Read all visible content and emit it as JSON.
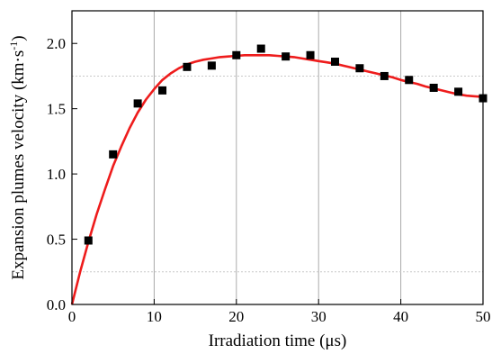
{
  "chart_data": {
    "type": "scatter",
    "xlabel": "Irradiation time (μs)",
    "ylabel": {
      "main": "Expansion plumes velocity (km·s",
      "sup": "-1",
      "close": ")"
    },
    "xlim": [
      0,
      50
    ],
    "ylim": [
      0,
      2.25
    ],
    "xticks": [
      0,
      10,
      20,
      30,
      40,
      50
    ],
    "xtick_labels": [
      "0",
      "10",
      "20",
      "30",
      "40",
      "50"
    ],
    "yticks": [
      0.0,
      0.5,
      1.0,
      1.5,
      2.0
    ],
    "ytick_labels": [
      "0.0",
      "0.5",
      "1.0",
      "1.5",
      "2.0"
    ],
    "x_gridlines": [
      10,
      20,
      30,
      40
    ],
    "y_gridlines": [
      0.25,
      1.75
    ],
    "series": [
      {
        "kind": "points",
        "marker": "square",
        "color": "#000000",
        "x": [
          2,
          5,
          8,
          11,
          14,
          17,
          20,
          23,
          26,
          29,
          32,
          35,
          38,
          41,
          44,
          47,
          50
        ],
        "y": [
          0.49,
          1.15,
          1.54,
          1.64,
          1.82,
          1.83,
          1.91,
          1.96,
          1.9,
          1.91,
          1.86,
          1.81,
          1.75,
          1.72,
          1.66,
          1.63,
          1.58
        ]
      },
      {
        "kind": "fit-line",
        "color": "#ee1c1c",
        "x": [
          0,
          1,
          2,
          3,
          4,
          5,
          6,
          7,
          8,
          9,
          10,
          11,
          12,
          13,
          14,
          15,
          16,
          17,
          18,
          19,
          20,
          21,
          22,
          23,
          24,
          25,
          26,
          27,
          28,
          29,
          30,
          31,
          32,
          33,
          34,
          35,
          36,
          37,
          38,
          39,
          40,
          41,
          42,
          43,
          44,
          45,
          46,
          47,
          48,
          49,
          50
        ],
        "y": [
          0.0,
          0.25,
          0.48,
          0.69,
          0.88,
          1.06,
          1.21,
          1.35,
          1.47,
          1.57,
          1.65,
          1.72,
          1.77,
          1.81,
          1.84,
          1.86,
          1.875,
          1.885,
          1.895,
          1.9,
          1.905,
          1.91,
          1.91,
          1.91,
          1.91,
          1.905,
          1.9,
          1.895,
          1.885,
          1.875,
          1.865,
          1.855,
          1.845,
          1.83,
          1.815,
          1.8,
          1.785,
          1.77,
          1.755,
          1.74,
          1.72,
          1.705,
          1.69,
          1.67,
          1.655,
          1.64,
          1.625,
          1.61,
          1.6,
          1.595,
          1.59
        ]
      }
    ],
    "grid": "partial-dotted",
    "legend": "none"
  }
}
